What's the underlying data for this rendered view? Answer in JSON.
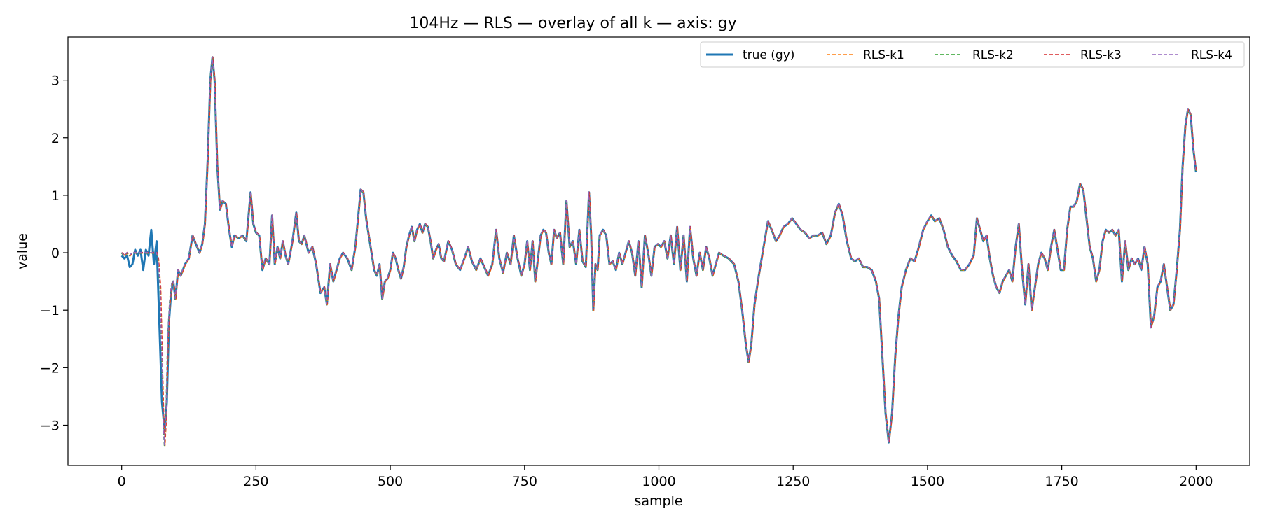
{
  "chart_data": {
    "type": "line",
    "title": "104Hz — RLS — overlay of all k — axis: gy",
    "xlabel": "sample",
    "ylabel": "value",
    "xlim": [
      -100,
      2100
    ],
    "ylim": [
      -3.7,
      3.75
    ],
    "x_ticks": [
      0,
      250,
      500,
      750,
      1000,
      1250,
      1500,
      1750,
      2000
    ],
    "y_ticks": [
      -3,
      -2,
      -1,
      0,
      1,
      2,
      3
    ],
    "grid": false,
    "legend_position": "top-right",
    "series": [
      {
        "name": "true (gy)",
        "color": "#1f77b4",
        "style": "solid"
      },
      {
        "name": "RLS-k1",
        "color": "#ff7f0e",
        "style": "dashed"
      },
      {
        "name": "RLS-k2",
        "color": "#2ca02c",
        "style": "dashed"
      },
      {
        "name": "RLS-k3",
        "color": "#d62728",
        "style": "dashed"
      },
      {
        "name": "RLS-k4",
        "color": "#9467bd",
        "style": "dashed"
      }
    ],
    "true_points": [
      [
        0,
        -0.05
      ],
      [
        5,
        -0.1
      ],
      [
        10,
        -0.05
      ],
      [
        15,
        -0.25
      ],
      [
        20,
        -0.2
      ],
      [
        25,
        0.05
      ],
      [
        30,
        -0.05
      ],
      [
        35,
        0.05
      ],
      [
        40,
        -0.3
      ],
      [
        45,
        0.05
      ],
      [
        50,
        -0.05
      ],
      [
        55,
        0.4
      ],
      [
        60,
        -0.2
      ],
      [
        65,
        0.2
      ],
      [
        70,
        -1.2
      ],
      [
        75,
        -2.6
      ],
      [
        80,
        -3.1
      ],
      [
        84,
        -2.6
      ],
      [
        88,
        -1.2
      ],
      [
        92,
        -0.7
      ],
      [
        96,
        -0.5
      ],
      [
        100,
        -0.8
      ],
      [
        105,
        -0.3
      ],
      [
        110,
        -0.4
      ],
      [
        118,
        -0.2
      ],
      [
        125,
        -0.1
      ],
      [
        132,
        0.3
      ],
      [
        138,
        0.15
      ],
      [
        145,
        0.0
      ],
      [
        150,
        0.15
      ],
      [
        155,
        0.5
      ],
      [
        160,
        1.6
      ],
      [
        165,
        3.0
      ],
      [
        169,
        3.4
      ],
      [
        173,
        3.0
      ],
      [
        178,
        1.5
      ],
      [
        183,
        0.75
      ],
      [
        188,
        0.9
      ],
      [
        194,
        0.85
      ],
      [
        200,
        0.4
      ],
      [
        205,
        0.1
      ],
      [
        210,
        0.3
      ],
      [
        218,
        0.25
      ],
      [
        225,
        0.3
      ],
      [
        232,
        0.2
      ],
      [
        240,
        1.05
      ],
      [
        245,
        0.5
      ],
      [
        250,
        0.35
      ],
      [
        256,
        0.3
      ],
      [
        262,
        -0.3
      ],
      [
        268,
        -0.1
      ],
      [
        275,
        -0.2
      ],
      [
        280,
        0.65
      ],
      [
        285,
        -0.2
      ],
      [
        290,
        0.1
      ],
      [
        295,
        -0.1
      ],
      [
        300,
        0.2
      ],
      [
        305,
        -0.05
      ],
      [
        310,
        -0.2
      ],
      [
        318,
        0.2
      ],
      [
        325,
        0.7
      ],
      [
        330,
        0.2
      ],
      [
        335,
        0.15
      ],
      [
        340,
        0.3
      ],
      [
        348,
        0.0
      ],
      [
        355,
        0.1
      ],
      [
        362,
        -0.2
      ],
      [
        370,
        -0.7
      ],
      [
        377,
        -0.6
      ],
      [
        382,
        -0.9
      ],
      [
        388,
        -0.2
      ],
      [
        394,
        -0.5
      ],
      [
        400,
        -0.3
      ],
      [
        406,
        -0.1
      ],
      [
        412,
        0.0
      ],
      [
        420,
        -0.1
      ],
      [
        428,
        -0.3
      ],
      [
        435,
        0.1
      ],
      [
        440,
        0.6
      ],
      [
        445,
        1.1
      ],
      [
        450,
        1.05
      ],
      [
        455,
        0.6
      ],
      [
        460,
        0.3
      ],
      [
        465,
        0.0
      ],
      [
        470,
        -0.3
      ],
      [
        475,
        -0.4
      ],
      [
        480,
        -0.2
      ],
      [
        485,
        -0.8
      ],
      [
        490,
        -0.5
      ],
      [
        495,
        -0.45
      ],
      [
        500,
        -0.3
      ],
      [
        505,
        0.0
      ],
      [
        510,
        -0.1
      ],
      [
        515,
        -0.3
      ],
      [
        520,
        -0.45
      ],
      [
        525,
        -0.25
      ],
      [
        530,
        0.1
      ],
      [
        535,
        0.3
      ],
      [
        540,
        0.45
      ],
      [
        545,
        0.2
      ],
      [
        550,
        0.4
      ],
      [
        555,
        0.5
      ],
      [
        560,
        0.35
      ],
      [
        565,
        0.5
      ],
      [
        570,
        0.45
      ],
      [
        575,
        0.2
      ],
      [
        580,
        -0.1
      ],
      [
        585,
        0.05
      ],
      [
        590,
        0.15
      ],
      [
        595,
        -0.1
      ],
      [
        600,
        -0.15
      ],
      [
        608,
        0.2
      ],
      [
        615,
        0.05
      ],
      [
        622,
        -0.2
      ],
      [
        630,
        -0.3
      ],
      [
        638,
        -0.1
      ],
      [
        645,
        0.1
      ],
      [
        652,
        -0.15
      ],
      [
        660,
        -0.3
      ],
      [
        668,
        -0.1
      ],
      [
        675,
        -0.25
      ],
      [
        682,
        -0.4
      ],
      [
        690,
        -0.2
      ],
      [
        697,
        0.4
      ],
      [
        703,
        -0.1
      ],
      [
        710,
        -0.35
      ],
      [
        717,
        0.0
      ],
      [
        724,
        -0.2
      ],
      [
        730,
        0.3
      ],
      [
        737,
        -0.1
      ],
      [
        744,
        -0.4
      ],
      [
        750,
        -0.2
      ],
      [
        755,
        0.2
      ],
      [
        760,
        -0.3
      ],
      [
        765,
        0.2
      ],
      [
        770,
        -0.5
      ],
      [
        775,
        -0.1
      ],
      [
        780,
        0.3
      ],
      [
        785,
        0.4
      ],
      [
        790,
        0.35
      ],
      [
        795,
        0.0
      ],
      [
        800,
        -0.2
      ],
      [
        805,
        0.4
      ],
      [
        810,
        0.25
      ],
      [
        816,
        0.35
      ],
      [
        822,
        -0.2
      ],
      [
        828,
        0.9
      ],
      [
        834,
        0.1
      ],
      [
        840,
        0.2
      ],
      [
        846,
        -0.2
      ],
      [
        852,
        0.4
      ],
      [
        858,
        -0.15
      ],
      [
        864,
        -0.25
      ],
      [
        870,
        1.05
      ],
      [
        874,
        0.3
      ],
      [
        878,
        -1.0
      ],
      [
        882,
        -0.2
      ],
      [
        886,
        -0.3
      ],
      [
        890,
        0.3
      ],
      [
        896,
        0.4
      ],
      [
        902,
        0.3
      ],
      [
        908,
        -0.2
      ],
      [
        914,
        -0.15
      ],
      [
        920,
        -0.3
      ],
      [
        926,
        0.0
      ],
      [
        932,
        -0.2
      ],
      [
        938,
        0.0
      ],
      [
        944,
        0.2
      ],
      [
        950,
        0.0
      ],
      [
        956,
        -0.4
      ],
      [
        962,
        0.2
      ],
      [
        968,
        -0.6
      ],
      [
        974,
        0.3
      ],
      [
        980,
        0.0
      ],
      [
        986,
        -0.4
      ],
      [
        992,
        0.1
      ],
      [
        998,
        0.15
      ],
      [
        1004,
        0.1
      ],
      [
        1010,
        0.2
      ],
      [
        1016,
        -0.1
      ],
      [
        1022,
        0.3
      ],
      [
        1028,
        -0.2
      ],
      [
        1034,
        0.45
      ],
      [
        1040,
        -0.3
      ],
      [
        1046,
        0.3
      ],
      [
        1052,
        -0.5
      ],
      [
        1058,
        0.45
      ],
      [
        1064,
        -0.1
      ],
      [
        1070,
        -0.4
      ],
      [
        1076,
        0.0
      ],
      [
        1082,
        -0.3
      ],
      [
        1088,
        0.1
      ],
      [
        1094,
        -0.1
      ],
      [
        1100,
        -0.4
      ],
      [
        1106,
        -0.2
      ],
      [
        1112,
        0.0
      ],
      [
        1120,
        -0.05
      ],
      [
        1130,
        -0.1
      ],
      [
        1140,
        -0.2
      ],
      [
        1148,
        -0.5
      ],
      [
        1155,
        -1.0
      ],
      [
        1162,
        -1.6
      ],
      [
        1167,
        -1.9
      ],
      [
        1172,
        -1.6
      ],
      [
        1178,
        -0.9
      ],
      [
        1186,
        -0.4
      ],
      [
        1195,
        0.1
      ],
      [
        1203,
        0.55
      ],
      [
        1210,
        0.4
      ],
      [
        1218,
        0.2
      ],
      [
        1225,
        0.3
      ],
      [
        1232,
        0.45
      ],
      [
        1240,
        0.5
      ],
      [
        1248,
        0.6
      ],
      [
        1256,
        0.5
      ],
      [
        1264,
        0.4
      ],
      [
        1272,
        0.35
      ],
      [
        1280,
        0.25
      ],
      [
        1288,
        0.3
      ],
      [
        1296,
        0.3
      ],
      [
        1304,
        0.35
      ],
      [
        1312,
        0.15
      ],
      [
        1320,
        0.3
      ],
      [
        1328,
        0.7
      ],
      [
        1335,
        0.85
      ],
      [
        1342,
        0.65
      ],
      [
        1350,
        0.2
      ],
      [
        1358,
        -0.1
      ],
      [
        1365,
        -0.15
      ],
      [
        1372,
        -0.1
      ],
      [
        1380,
        -0.25
      ],
      [
        1388,
        -0.25
      ],
      [
        1396,
        -0.3
      ],
      [
        1404,
        -0.5
      ],
      [
        1410,
        -0.8
      ],
      [
        1416,
        -1.8
      ],
      [
        1422,
        -2.8
      ],
      [
        1428,
        -3.3
      ],
      [
        1434,
        -2.8
      ],
      [
        1440,
        -1.8
      ],
      [
        1446,
        -1.1
      ],
      [
        1452,
        -0.6
      ],
      [
        1460,
        -0.3
      ],
      [
        1468,
        -0.1
      ],
      [
        1476,
        -0.15
      ],
      [
        1484,
        0.1
      ],
      [
        1492,
        0.4
      ],
      [
        1500,
        0.55
      ],
      [
        1507,
        0.65
      ],
      [
        1514,
        0.55
      ],
      [
        1522,
        0.6
      ],
      [
        1530,
        0.4
      ],
      [
        1538,
        0.1
      ],
      [
        1546,
        -0.05
      ],
      [
        1554,
        -0.15
      ],
      [
        1562,
        -0.3
      ],
      [
        1570,
        -0.3
      ],
      [
        1578,
        -0.2
      ],
      [
        1586,
        -0.05
      ],
      [
        1592,
        0.6
      ],
      [
        1598,
        0.4
      ],
      [
        1604,
        0.2
      ],
      [
        1610,
        0.3
      ],
      [
        1616,
        -0.1
      ],
      [
        1622,
        -0.4
      ],
      [
        1628,
        -0.6
      ],
      [
        1634,
        -0.7
      ],
      [
        1640,
        -0.5
      ],
      [
        1646,
        -0.4
      ],
      [
        1652,
        -0.3
      ],
      [
        1658,
        -0.5
      ],
      [
        1664,
        0.1
      ],
      [
        1670,
        0.5
      ],
      [
        1676,
        -0.3
      ],
      [
        1682,
        -0.9
      ],
      [
        1688,
        -0.2
      ],
      [
        1694,
        -1.0
      ],
      [
        1700,
        -0.6
      ],
      [
        1706,
        -0.2
      ],
      [
        1712,
        0.0
      ],
      [
        1718,
        -0.1
      ],
      [
        1724,
        -0.3
      ],
      [
        1730,
        0.1
      ],
      [
        1736,
        0.4
      ],
      [
        1742,
        0.05
      ],
      [
        1748,
        -0.3
      ],
      [
        1754,
        -0.3
      ],
      [
        1760,
        0.4
      ],
      [
        1766,
        0.8
      ],
      [
        1772,
        0.8
      ],
      [
        1778,
        0.9
      ],
      [
        1784,
        1.2
      ],
      [
        1790,
        1.1
      ],
      [
        1796,
        0.6
      ],
      [
        1802,
        0.1
      ],
      [
        1808,
        -0.1
      ],
      [
        1814,
        -0.5
      ],
      [
        1820,
        -0.3
      ],
      [
        1826,
        0.2
      ],
      [
        1832,
        0.4
      ],
      [
        1838,
        0.35
      ],
      [
        1844,
        0.4
      ],
      [
        1850,
        0.3
      ],
      [
        1856,
        0.4
      ],
      [
        1862,
        -0.5
      ],
      [
        1868,
        0.2
      ],
      [
        1874,
        -0.3
      ],
      [
        1880,
        -0.1
      ],
      [
        1886,
        -0.2
      ],
      [
        1892,
        -0.1
      ],
      [
        1898,
        -0.3
      ],
      [
        1904,
        0.1
      ],
      [
        1910,
        -0.2
      ],
      [
        1916,
        -1.3
      ],
      [
        1922,
        -1.1
      ],
      [
        1928,
        -0.6
      ],
      [
        1934,
        -0.5
      ],
      [
        1940,
        -0.2
      ],
      [
        1946,
        -0.6
      ],
      [
        1952,
        -1.0
      ],
      [
        1958,
        -0.9
      ],
      [
        1964,
        -0.3
      ],
      [
        1970,
        0.4
      ],
      [
        1975,
        1.5
      ],
      [
        1980,
        2.2
      ],
      [
        1985,
        2.5
      ],
      [
        1990,
        2.4
      ],
      [
        1995,
        1.8
      ],
      [
        2000,
        1.4
      ]
    ],
    "rls_startup_points": [
      [
        0,
        0.0
      ],
      [
        5,
        -0.05
      ],
      [
        10,
        0.0
      ],
      [
        15,
        -0.05
      ],
      [
        20,
        0.0
      ],
      [
        25,
        0.0
      ],
      [
        30,
        0.0
      ],
      [
        35,
        0.0
      ],
      [
        40,
        0.0
      ],
      [
        45,
        0.0
      ],
      [
        50,
        0.0
      ],
      [
        55,
        0.0
      ],
      [
        60,
        0.0
      ],
      [
        65,
        0.0
      ],
      [
        68,
        -0.1
      ],
      [
        72,
        -0.6
      ],
      [
        75,
        -1.8
      ],
      [
        78,
        -3.0
      ],
      [
        80,
        -3.35
      ],
      [
        83,
        -2.8
      ],
      [
        86,
        -1.5
      ],
      [
        90,
        -0.8
      ],
      [
        94,
        -0.5
      ],
      [
        96,
        -0.5
      ]
    ]
  }
}
